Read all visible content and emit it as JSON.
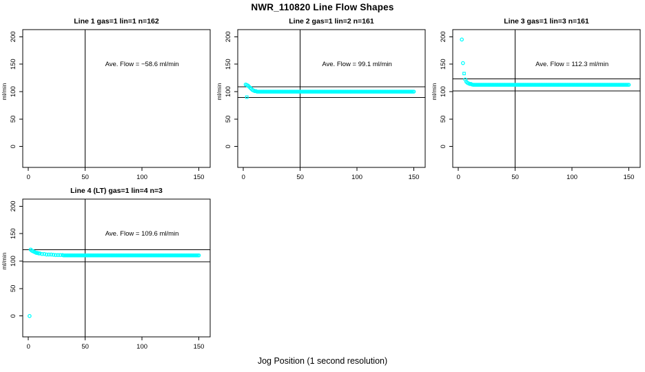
{
  "page": {
    "main_title": "NWR_110820  Line Flow Shapes",
    "x_axis_label": "Jog Position (1 second resolution)"
  },
  "colors": {
    "points": "#00FFFF",
    "axis": "#000000",
    "background": "#FFFFFF"
  },
  "chart_data": [
    {
      "type": "scatter",
      "title": "Line 1 gas=1 lin=1 n=162",
      "annotation": "Ave. Flow =  −58.6  ml/min",
      "ave_flow_ml_min": -58.6,
      "n": 162,
      "ylabel": "ml/min",
      "xticks": [
        0,
        50,
        100,
        150
      ],
      "yticks": [
        0,
        50,
        100,
        150,
        200
      ],
      "xlim": [
        -5,
        160
      ],
      "ylim": [
        -38,
        213
      ],
      "vline_x": 50,
      "hlines_y": [],
      "head_points": [],
      "runs": []
    },
    {
      "type": "scatter",
      "title": "Line 2 gas=1 lin=2 n=161",
      "annotation": "Ave. Flow =  99.1  ml/min",
      "ave_flow_ml_min": 99.1,
      "n": 161,
      "ylabel": "ml/min",
      "xticks": [
        0,
        50,
        100,
        150
      ],
      "yticks": [
        0,
        50,
        100,
        150,
        200
      ],
      "xlim": [
        -5,
        160
      ],
      "ylim": [
        -38,
        213
      ],
      "vline_x": 50,
      "hlines_y": [
        109.0,
        89.2
      ],
      "head_points": [
        [
          3,
          90,
          "s"
        ],
        [
          2,
          113,
          "c"
        ],
        [
          3,
          112,
          "c"
        ],
        [
          4,
          111,
          "c"
        ],
        [
          5,
          109,
          "c"
        ],
        [
          6,
          107,
          "c"
        ],
        [
          7,
          105,
          "c"
        ],
        [
          8,
          103,
          "c"
        ],
        [
          9,
          102,
          "c"
        ],
        [
          10,
          101,
          "c"
        ],
        [
          11,
          101,
          "c"
        ],
        [
          12,
          100,
          "c"
        ]
      ],
      "runs": [
        {
          "x0": 13,
          "x1": 150,
          "y": 100
        }
      ]
    },
    {
      "type": "scatter",
      "title": "Line 3 gas=1 lin=3 n=161",
      "annotation": "Ave. Flow =  112.3  ml/min",
      "ave_flow_ml_min": 112.3,
      "n": 161,
      "ylabel": "ml/min",
      "xticks": [
        0,
        50,
        100,
        150
      ],
      "yticks": [
        0,
        50,
        100,
        150,
        200
      ],
      "xlim": [
        -5,
        160
      ],
      "ylim": [
        -38,
        213
      ],
      "vline_x": 50,
      "hlines_y": [
        123.5,
        101.1
      ],
      "head_points": [
        [
          3,
          195,
          "c"
        ],
        [
          4,
          152,
          "c"
        ],
        [
          5,
          133,
          "s"
        ],
        [
          6,
          122,
          "c"
        ],
        [
          7,
          118,
          "c"
        ],
        [
          8,
          116,
          "c"
        ],
        [
          9,
          115,
          "c"
        ],
        [
          10,
          114,
          "c"
        ],
        [
          11,
          114,
          "c"
        ],
        [
          12,
          113,
          "c"
        ]
      ],
      "runs": [
        {
          "x0": 13,
          "x1": 150,
          "y": 112.5
        }
      ]
    },
    {
      "type": "scatter",
      "title": "Line 4 (LT) gas=1 lin=4 n=3",
      "annotation": "Ave. Flow =  109.6  ml/min",
      "ave_flow_ml_min": 109.6,
      "n": 3,
      "ylabel": "ml/min",
      "xticks": [
        0,
        50,
        100,
        150
      ],
      "yticks": [
        0,
        50,
        100,
        150,
        200
      ],
      "xlim": [
        -5,
        160
      ],
      "ylim": [
        -38,
        213
      ],
      "vline_x": 50,
      "hlines_y": [
        120.6,
        98.6
      ],
      "head_points": [
        [
          1,
          0,
          "c"
        ],
        [
          2,
          121,
          "c"
        ],
        [
          3,
          119,
          "c"
        ],
        [
          4,
          118,
          "c"
        ],
        [
          5,
          117,
          "c"
        ],
        [
          6,
          116,
          "c"
        ],
        [
          7,
          115,
          "c"
        ],
        [
          8,
          115,
          "c"
        ],
        [
          9,
          114,
          "c"
        ],
        [
          10,
          114,
          "c"
        ],
        [
          12,
          113,
          "c"
        ],
        [
          14,
          113,
          "c"
        ],
        [
          16,
          112,
          "c"
        ],
        [
          18,
          112,
          "c"
        ],
        [
          20,
          112,
          "c"
        ],
        [
          22,
          111.5,
          "c"
        ],
        [
          24,
          111,
          "c"
        ],
        [
          26,
          111,
          "c"
        ],
        [
          28,
          111,
          "c"
        ],
        [
          30,
          111,
          "c"
        ]
      ],
      "runs": [
        {
          "x0": 31,
          "x1": 150,
          "y": 110.5
        }
      ]
    }
  ]
}
